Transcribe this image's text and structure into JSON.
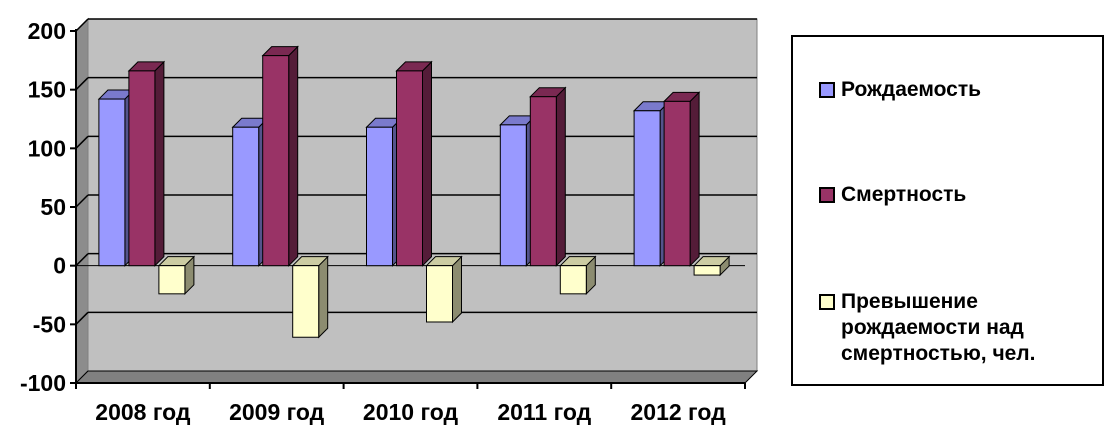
{
  "chart_data": {
    "type": "bar",
    "categories": [
      "2008 год",
      "2009 год",
      "2010 год",
      "2011 год",
      "2012 год"
    ],
    "series": [
      {
        "name": "Рождаемость",
        "values": [
          142,
          118,
          118,
          120,
          132
        ],
        "color": "#9999ff"
      },
      {
        "name": "Смертность",
        "values": [
          166,
          179,
          166,
          144,
          140
        ],
        "color": "#993366"
      },
      {
        "name": "Превышение рождаемости над смертностью, чел.",
        "values": [
          -24,
          -61,
          -48,
          -24,
          -8
        ],
        "color": "#ffffcc"
      }
    ],
    "y_ticks": [
      "200",
      "150",
      "100",
      "50",
      "0",
      "-50",
      "-100"
    ],
    "ylim": [
      -100,
      200
    ],
    "grid": true,
    "legend_position": "right",
    "plot_area_color": "#c0c0c0"
  }
}
